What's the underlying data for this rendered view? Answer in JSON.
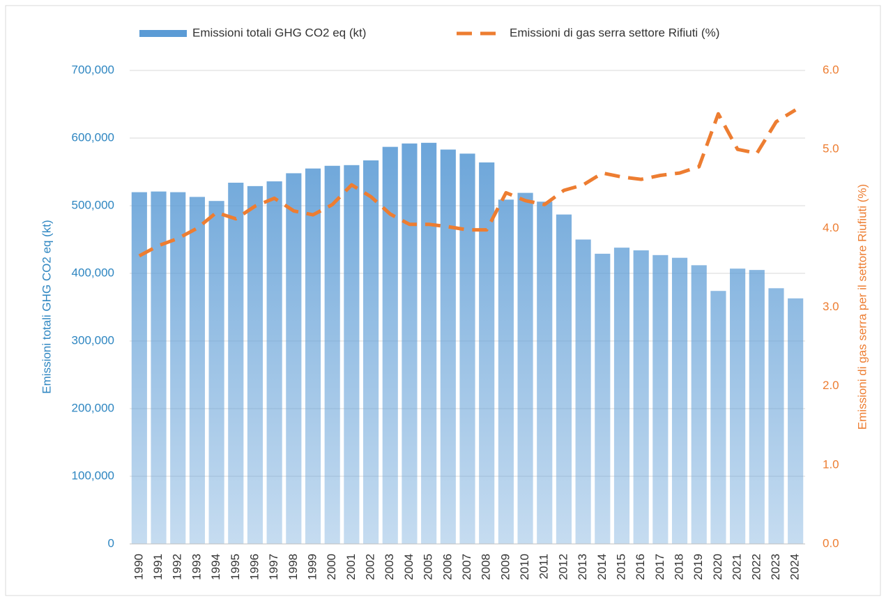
{
  "chart_data": {
    "type": "bar_line",
    "categories": [
      "1990",
      "1991",
      "1992",
      "1993",
      "1994",
      "1995",
      "1996",
      "1997",
      "1998",
      "1999",
      "2000",
      "2001",
      "2002",
      "2003",
      "2004",
      "2005",
      "2006",
      "2007",
      "2008",
      "2009",
      "2010",
      "2011",
      "2012",
      "2013",
      "2014",
      "2015",
      "2016",
      "2017",
      "2018",
      "2019",
      "2020",
      "2021",
      "2022",
      "2023",
      "2024"
    ],
    "series": [
      {
        "name": "Emissioni totali  GHG CO2 eq (kt)",
        "type": "bar",
        "color": "#5b9bd5",
        "values": [
          520000,
          521000,
          520000,
          513000,
          507000,
          534000,
          529000,
          536000,
          548000,
          555000,
          559000,
          560000,
          567000,
          587000,
          592000,
          593000,
          583000,
          577000,
          564000,
          509000,
          519000,
          506000,
          487000,
          450000,
          429000,
          438000,
          434000,
          427000,
          423000,
          412000,
          374000,
          407000,
          405000,
          378000,
          363000
        ]
      },
      {
        "name": "Emissioni di gas serra settore Rifiuti (%)",
        "type": "line",
        "axis": "y2",
        "color": "#ed7d31",
        "values": [
          3.65,
          3.78,
          3.87,
          4.0,
          4.2,
          4.12,
          4.28,
          4.38,
          4.22,
          4.17,
          4.3,
          4.55,
          4.4,
          4.18,
          4.05,
          4.05,
          4.02,
          3.98,
          3.98,
          4.45,
          4.35,
          4.3,
          4.48,
          4.55,
          4.7,
          4.65,
          4.62,
          4.67,
          4.7,
          4.78,
          5.45,
          5.0,
          4.95,
          5.35,
          5.5
        ]
      }
    ],
    "ylabel": "Emissioni totali GHG CO2 eq (kt)",
    "y2label": "Emissioni di gas serra per il settore Riufiuti (%)",
    "ylim": [
      0,
      700000
    ],
    "yticks": [
      0,
      {
        "value": 100000,
        "label": "100,000"
      },
      {
        "value": 200000,
        "label": "200,000"
      },
      {
        "value": 300000,
        "label": "300,000"
      },
      {
        "value": 400000,
        "label": "400,000"
      },
      {
        "value": 500000,
        "label": "500,000"
      },
      {
        "value": 600000,
        "label": "600,000"
      },
      {
        "value": 700000,
        "label": "700,000"
      }
    ],
    "y2lim": [
      0,
      6
    ],
    "y2ticks": [
      {
        "value": 0,
        "label": "0.0"
      },
      {
        "value": 1,
        "label": "1.0"
      },
      {
        "value": 2,
        "label": "2.0"
      },
      {
        "value": 3,
        "label": "3.0"
      },
      {
        "value": 4,
        "label": "4.0"
      },
      {
        "value": 5,
        "label": "5.0"
      },
      {
        "value": 6,
        "label": "6.0"
      }
    ],
    "grid": true,
    "legend": "top"
  }
}
